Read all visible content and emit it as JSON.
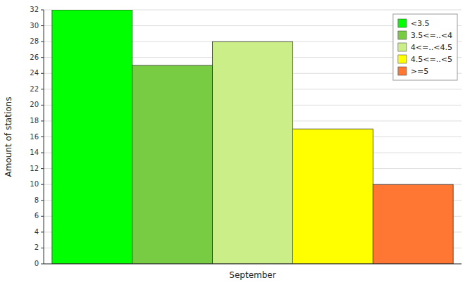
{
  "chart_data": {
    "type": "bar",
    "ylabel": "Amount of stations",
    "categories": [
      "September"
    ],
    "series": [
      {
        "name": "<3.5",
        "color": "#00FF00",
        "values": [
          32
        ]
      },
      {
        "name": "3.5<=..<4",
        "color": "#77CC44",
        "values": [
          25
        ]
      },
      {
        "name": "4<=..<4.5",
        "color": "#CCEE88",
        "values": [
          28
        ]
      },
      {
        "name": "4.5<=..<5",
        "color": "#FFFF00",
        "values": [
          17
        ]
      },
      {
        "name": ">=5",
        "color": "#FF7733",
        "values": [
          10
        ]
      }
    ],
    "ylim": [
      0,
      32
    ],
    "yticks": [
      0,
      2,
      4,
      6,
      8,
      10,
      12,
      14,
      16,
      18,
      20,
      22,
      24,
      26,
      28,
      30,
      32
    ],
    "grid": true,
    "legend": "upper right"
  }
}
